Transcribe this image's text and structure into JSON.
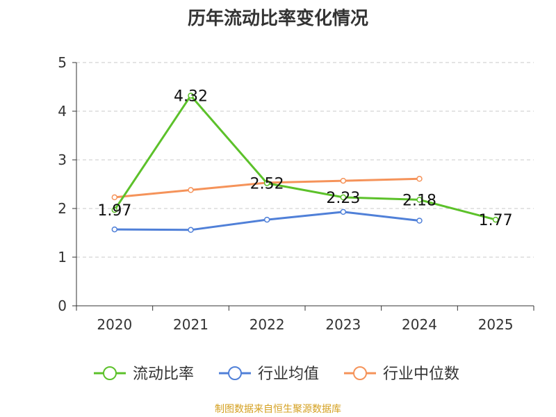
{
  "chart_data": {
    "type": "line",
    "title": "历年流动比率变化情况",
    "xlabel": "",
    "ylabel": "",
    "categories": [
      "2020",
      "2021",
      "2022",
      "2023",
      "2024",
      "2025"
    ],
    "ylim": [
      0,
      5
    ],
    "yticks": [
      0,
      1,
      2,
      3,
      4,
      5
    ],
    "grid": true,
    "legend_position": "bottom",
    "series": [
      {
        "name": "流动比率",
        "color": "#5cc12a",
        "values": [
          1.97,
          4.32,
          2.52,
          2.23,
          2.18,
          1.77
        ],
        "labels": [
          "1.97",
          "4.32",
          "2.52",
          "2.23",
          "2.18",
          "1.77"
        ]
      },
      {
        "name": "行业均值",
        "color": "#5080d8",
        "values": [
          1.57,
          1.56,
          1.77,
          1.93,
          1.75,
          null
        ]
      },
      {
        "name": "行业中位数",
        "color": "#f5935a",
        "values": [
          2.23,
          2.38,
          2.53,
          2.57,
          2.61,
          null
        ]
      }
    ]
  },
  "footer": {
    "source": "制图数据来自恒生聚源数据库"
  }
}
